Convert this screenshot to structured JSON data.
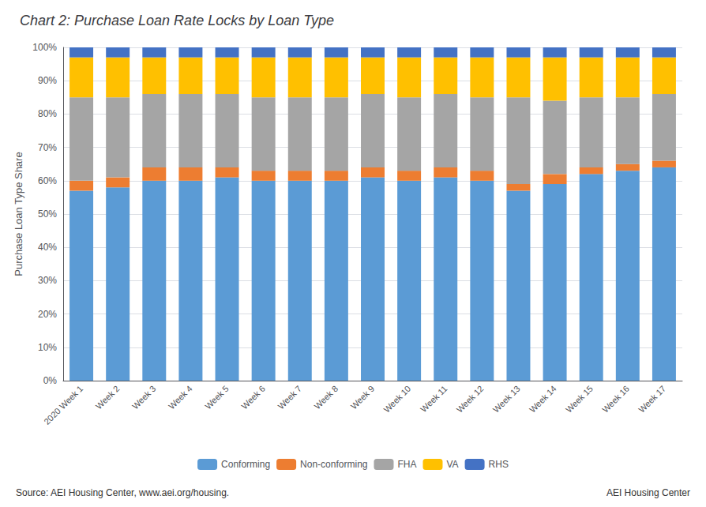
{
  "chart_data": {
    "type": "bar",
    "stacked": true,
    "title": "Chart 2: Purchase Loan Rate Locks by Loan Type",
    "ylabel": "Purchase Loan Type Share",
    "annotations": [
      "Source: AEI Housing Center, www.aei.org/housing.",
      "AEI Housing Center"
    ],
    "categories": [
      "2020 Week 1",
      "Week 2",
      "Week 3",
      "Week 4",
      "Week 5",
      "Week 6",
      "Week 7",
      "Week 8",
      "Week 9",
      "Week 10",
      "Week 11",
      "Week 12",
      "Week 13",
      "Week 14",
      "Week 15",
      "Week 16",
      "Week 17"
    ],
    "series": [
      {
        "name": "Conforming",
        "color": "#5B9BD5",
        "values": [
          57,
          58,
          60,
          60,
          61,
          60,
          60,
          60,
          61,
          60,
          61,
          60,
          57,
          59,
          62,
          63,
          64
        ]
      },
      {
        "name": "Non-conforming",
        "color": "#ED7D31",
        "values": [
          3,
          3,
          4,
          4,
          3,
          3,
          3,
          3,
          3,
          3,
          3,
          3,
          2,
          3,
          2,
          2,
          2
        ]
      },
      {
        "name": "FHA",
        "color": "#A5A5A5",
        "values": [
          25,
          24,
          22,
          22,
          22,
          22,
          22,
          22,
          22,
          22,
          22,
          22,
          26,
          22,
          21,
          20,
          20
        ]
      },
      {
        "name": "VA",
        "color": "#FFC000",
        "values": [
          12,
          12,
          11,
          11,
          11,
          12,
          12,
          12,
          11,
          12,
          11,
          12,
          12,
          13,
          12,
          12,
          11
        ]
      },
      {
        "name": "RHS",
        "color": "#4472C4",
        "values": [
          3,
          3,
          3,
          3,
          3,
          3,
          3,
          3,
          3,
          3,
          3,
          3,
          3,
          3,
          3,
          3,
          3
        ]
      }
    ],
    "ylim": [
      0,
      100
    ],
    "yticks": [
      {
        "value": 0,
        "label": "0%"
      },
      {
        "value": 10,
        "label": "10%"
      },
      {
        "value": 20,
        "label": "20%"
      },
      {
        "value": 30,
        "label": "30%"
      },
      {
        "value": 40,
        "label": "40%"
      },
      {
        "value": 50,
        "label": "50%"
      },
      {
        "value": 60,
        "label": "60%"
      },
      {
        "value": 70,
        "label": "70%"
      },
      {
        "value": 80,
        "label": "80%"
      },
      {
        "value": 90,
        "label": "90%"
      },
      {
        "value": 100,
        "label": "100%"
      }
    ],
    "grid": true,
    "legend": "bottom"
  }
}
